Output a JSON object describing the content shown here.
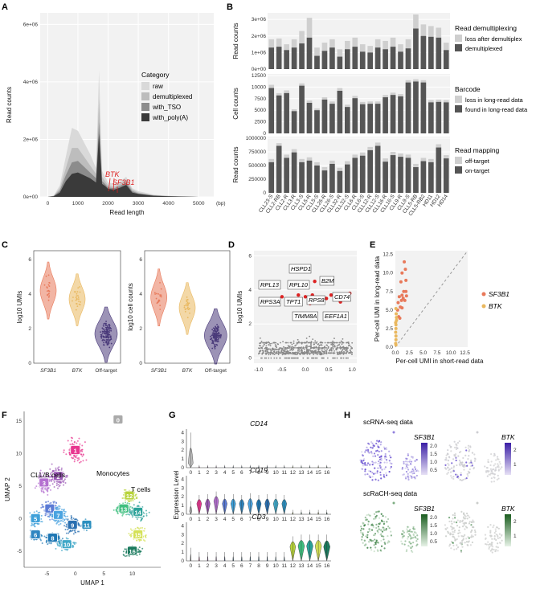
{
  "panel_labels": {
    "A": "A",
    "B": "B",
    "C": "C",
    "D": "D",
    "E": "E",
    "F": "F",
    "G": "G",
    "H": "H"
  },
  "colors": {
    "raw": "#d9d9d9",
    "demultiplexed": "#bdbdbd",
    "tso": "#8c8c8c",
    "polyA": "#3a3a3a",
    "sf3b1": "#e8795a",
    "btk": "#e9b85f",
    "off": "#4a3a7a",
    "green": "#2e7d32",
    "purple": "#5b3fc4"
  },
  "chart_data": [
    {
      "id": "A",
      "type": "area",
      "xlabel": "Read length",
      "xunit": "(bp)",
      "ylabel": "Read counts",
      "xticks": [
        "0",
        "1000",
        "2000",
        "3000",
        "4000",
        "5000"
      ],
      "yticks": [
        "0e+00",
        "2e+06",
        "4e+06",
        "6e+06"
      ],
      "legend_title": "Category",
      "legend": [
        "raw",
        "demultiplexed",
        "with_TSO",
        "with_poly(A)"
      ],
      "annotations": [
        "BTK",
        "SF3B1"
      ],
      "x": [
        0,
        200,
        400,
        600,
        800,
        1000,
        1200,
        1400,
        1600,
        1700,
        1800,
        1900,
        2000,
        2200,
        2400,
        2600,
        2800,
        3000,
        3500,
        4000,
        4500,
        5000
      ],
      "series": [
        {
          "name": "raw",
          "values": [
            0,
            0.05,
            0.4,
            1.4,
            2.4,
            2.3,
            1.9,
            1.5,
            1.0,
            4.4,
            0.9,
            0.7,
            0.5,
            0.45,
            0.55,
            0.7,
            0.3,
            0.2,
            0.08,
            0.04,
            0.02,
            0
          ]
        },
        {
          "name": "demultiplexed",
          "values": [
            0,
            0.04,
            0.3,
            1.0,
            1.7,
            1.7,
            1.4,
            1.1,
            0.8,
            3.4,
            0.7,
            0.55,
            0.4,
            0.35,
            0.45,
            0.6,
            0.25,
            0.15,
            0.06,
            0.03,
            0.01,
            0
          ]
        },
        {
          "name": "with_TSO",
          "values": [
            0,
            0.03,
            0.22,
            0.75,
            1.2,
            1.25,
            1.05,
            0.85,
            0.65,
            2.6,
            0.55,
            0.45,
            0.33,
            0.3,
            0.38,
            0.5,
            0.2,
            0.12,
            0.05,
            0.02,
            0.01,
            0
          ]
        },
        {
          "name": "with_poly(A)",
          "values": [
            0,
            0.02,
            0.15,
            0.55,
            0.8,
            0.85,
            0.75,
            0.65,
            0.5,
            2.2,
            0.45,
            0.38,
            0.28,
            0.25,
            0.32,
            0.42,
            0.15,
            0.1,
            0.04,
            0.02,
            0.01,
            0
          ]
        }
      ]
    },
    {
      "id": "B1",
      "type": "bar",
      "ylabel": "Read counts",
      "yticks": [
        "0e+00",
        "1e+06",
        "2e+06",
        "3e+06"
      ],
      "title": "Read demultiplexing",
      "legend": [
        "loss after demultiplex",
        "demultiplexed"
      ],
      "categories": [
        "CLL23-S",
        "CLL2-RB",
        "CLL2-R",
        "CLL3-R",
        "CLL3-S",
        "CLL5-R",
        "CLL5-S",
        "CLL26-R",
        "CLL26-S",
        "CLL32-R",
        "CLL32-S",
        "CLL6-R",
        "CLL6-S",
        "CLL12-R",
        "CLL12-S",
        "CLL16-R",
        "CLL16-S",
        "CLL9-R",
        "CLL9-S",
        "CLL5-RB",
        "CLL5-RB2",
        "HD11",
        "HD12",
        "HD14"
      ],
      "series": [
        {
          "name": "demultiplexed",
          "values": [
            1.3,
            1.35,
            1.15,
            1.3,
            1.55,
            1.9,
            0.8,
            1.1,
            1.3,
            0.75,
            1.2,
            1.35,
            1.05,
            1.0,
            1.3,
            1.2,
            1.35,
            1.05,
            1.25,
            2.45,
            2.0,
            1.95,
            1.9,
            1.15
          ]
        },
        {
          "name": "total",
          "values": [
            1.8,
            1.85,
            1.5,
            1.8,
            2.3,
            3.1,
            1.3,
            1.6,
            1.8,
            1.2,
            1.7,
            1.9,
            1.5,
            1.4,
            1.8,
            1.7,
            1.9,
            1.5,
            1.8,
            3.3,
            2.7,
            2.6,
            2.5,
            1.6
          ]
        }
      ]
    },
    {
      "id": "B2",
      "type": "bar",
      "ylabel": "Cell counts",
      "yticks": [
        "0",
        "2500",
        "5000",
        "7500",
        "10000",
        "12500"
      ],
      "title": "Barcode",
      "legend": [
        "loss in long-read data",
        "found in long-read data"
      ],
      "series": [
        {
          "name": "found",
          "values": [
            9800,
            8200,
            8700,
            4800,
            10300,
            6600,
            5000,
            7300,
            6400,
            9200,
            5700,
            7600,
            6300,
            6400,
            6400,
            7800,
            8300,
            8000,
            11000,
            11200,
            11000,
            6700,
            6800,
            6700
          ]
        },
        {
          "name": "total",
          "values": [
            10500,
            8700,
            9300,
            5200,
            10800,
            7100,
            5400,
            7800,
            6900,
            9800,
            6200,
            8100,
            6800,
            6900,
            6900,
            8300,
            8800,
            8500,
            11500,
            11700,
            11500,
            7200,
            7300,
            7200
          ]
        }
      ]
    },
    {
      "id": "B3",
      "type": "bar",
      "ylabel": "Read counts",
      "yticks": [
        "0",
        "250000",
        "500000",
        "750000",
        "1000000"
      ],
      "title": "Read mapping",
      "legend": [
        "off-target",
        "on-target"
      ],
      "series": [
        {
          "name": "on-target",
          "values": [
            560000,
            860000,
            640000,
            740000,
            560000,
            590000,
            500000,
            410000,
            530000,
            400000,
            520000,
            640000,
            680000,
            780000,
            860000,
            570000,
            690000,
            660000,
            640000,
            470000,
            580000,
            560000,
            830000,
            630000
          ]
        },
        {
          "name": "total",
          "values": [
            620000,
            910000,
            700000,
            800000,
            620000,
            650000,
            560000,
            470000,
            590000,
            460000,
            580000,
            700000,
            740000,
            840000,
            920000,
            630000,
            750000,
            720000,
            700000,
            530000,
            640000,
            620000,
            890000,
            690000
          ]
        }
      ]
    },
    {
      "id": "C1",
      "type": "violin",
      "ylabel": "log10 UMIs",
      "categories": [
        "SF3B1",
        "BTK",
        "Off-target"
      ],
      "yticks": [
        "0",
        "2",
        "4",
        "6"
      ],
      "medians": [
        4.2,
        3.7,
        1.7
      ]
    },
    {
      "id": "C2",
      "type": "violin",
      "ylabel": "log10 cell counts",
      "categories": [
        "SF3B1",
        "BTK",
        "Off-target"
      ],
      "yticks": [
        "0",
        "2",
        "4",
        "6"
      ],
      "medians": [
        3.8,
        3.2,
        1.6
      ]
    },
    {
      "id": "D",
      "type": "scatter",
      "ylabel": "log10 UMIs",
      "xticks": [
        "-1.0",
        "-0.5",
        "0.0",
        "0.5",
        "1.0"
      ],
      "yticks": [
        "0",
        "2",
        "4",
        "6"
      ],
      "labels": [
        "HSPD1",
        "RPL13",
        "RPL10",
        "B2M",
        "CD74",
        "RPS3A",
        "TPT1",
        "RPS8",
        "TIMM8A",
        "EEF1A1"
      ]
    },
    {
      "id": "E",
      "type": "scatter",
      "xlabel": "Per-cell UMI in short-read data",
      "ylabel": "Per-cell UMI in long-read data",
      "xticks": [
        "0.0",
        "2.5",
        "5.0",
        "7.5",
        "10.0",
        "12.5"
      ],
      "yticks": [
        "0.0",
        "2.5",
        "5.0",
        "7.5",
        "10.0",
        "12.5"
      ],
      "legend": [
        "SF3B1",
        "BTK"
      ]
    },
    {
      "id": "F",
      "type": "scatter",
      "xlabel": "UMAP 1",
      "ylabel": "UMAP 2",
      "xticks": [
        "-5",
        "0",
        "5",
        "10"
      ],
      "yticks": [
        "-5",
        "0",
        "5",
        "10",
        "15"
      ],
      "groups": [
        "Monocytes",
        "CLL/B cells",
        "T cells"
      ],
      "clusters": [
        "0",
        "1",
        "2",
        "3",
        "4",
        "5",
        "6",
        "7",
        "8",
        "9",
        "10",
        "11",
        "12",
        "13",
        "14",
        "15",
        "16"
      ]
    },
    {
      "id": "G",
      "type": "violin",
      "ylabel": "Expression Level",
      "genes": [
        "CD14",
        "CD19",
        "CD3"
      ],
      "categories": [
        "0",
        "1",
        "2",
        "3",
        "4",
        "5",
        "6",
        "7",
        "8",
        "9",
        "10",
        "11",
        "12",
        "13",
        "14",
        "15",
        "16"
      ],
      "yticks": [
        "0",
        "1",
        "2",
        "3",
        "4"
      ]
    },
    {
      "id": "H",
      "type": "heatmap",
      "titles": [
        "scRNA-seq data",
        "scRaCH-seq data"
      ],
      "genes": [
        "SF3B1",
        "BTK"
      ],
      "scale_sf3b1": [
        "2.0",
        "1.5",
        "1.0",
        "0.5"
      ],
      "scale_btk": [
        "2",
        "1"
      ]
    }
  ]
}
